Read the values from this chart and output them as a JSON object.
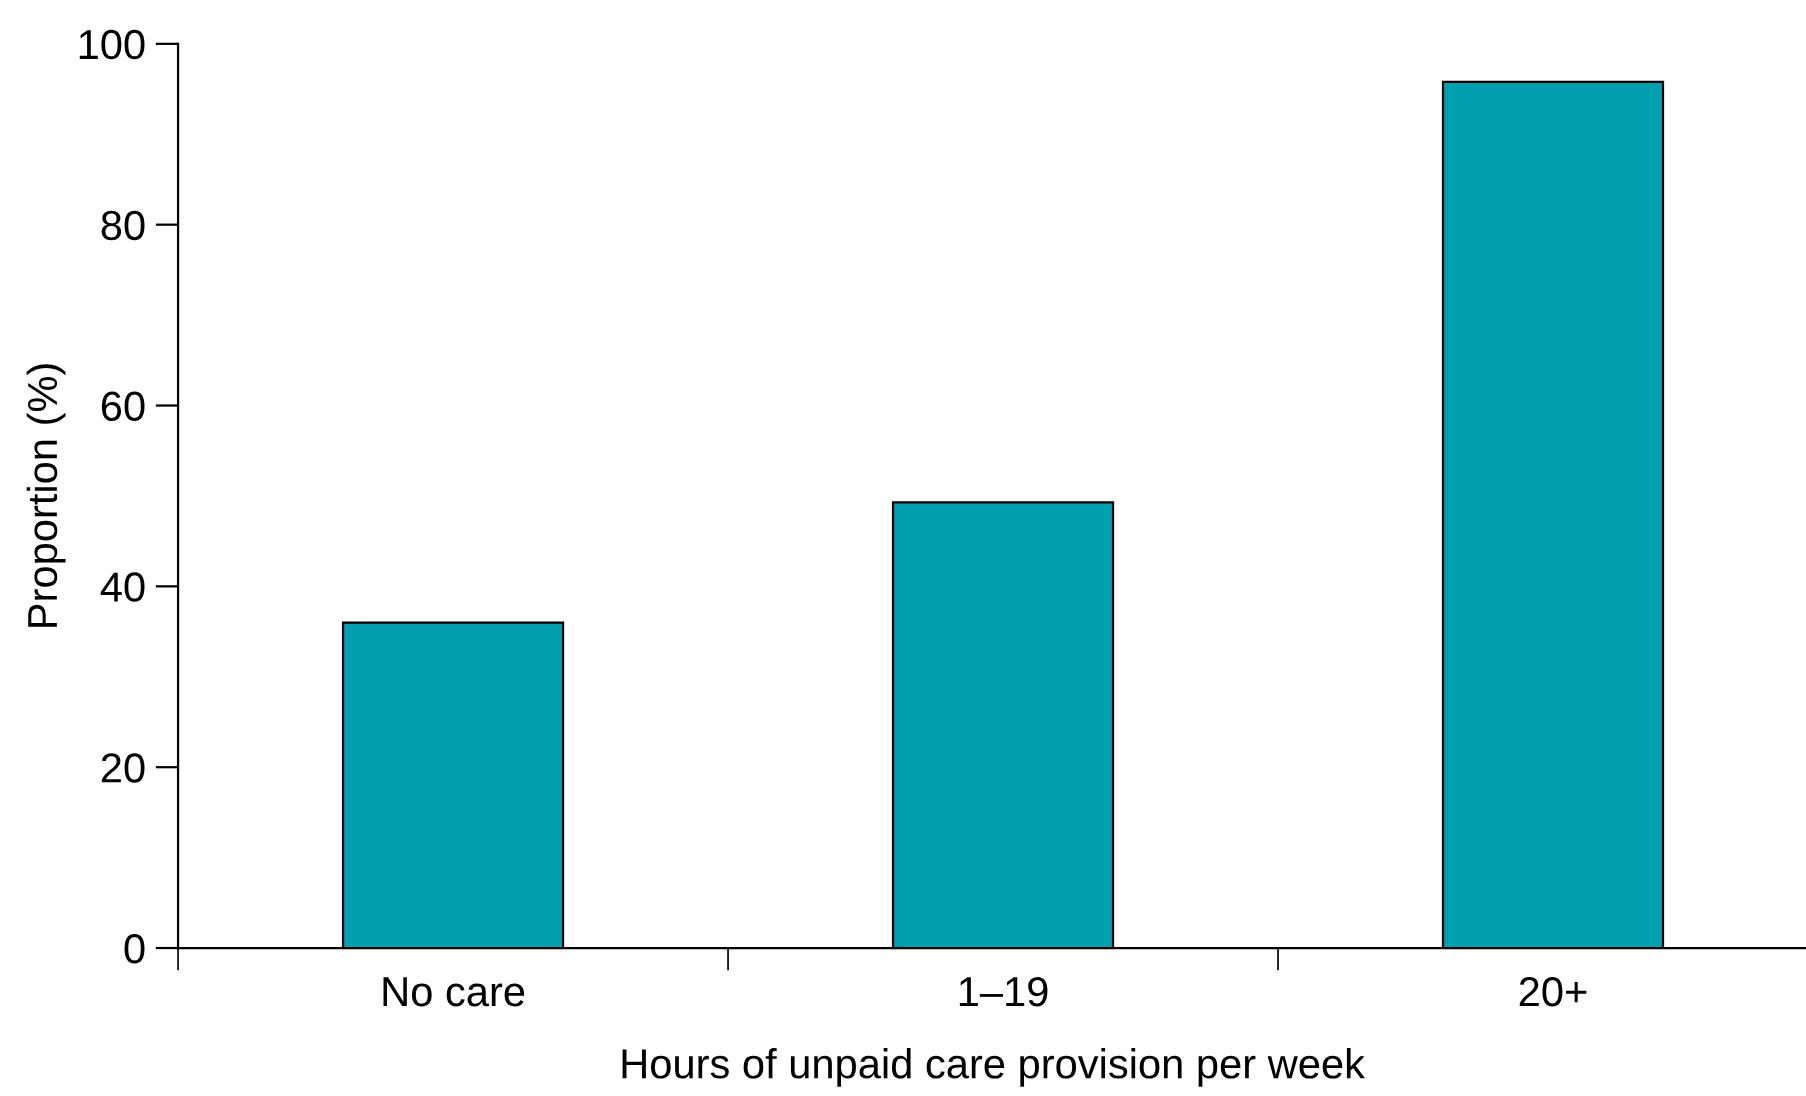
{
  "chart_data": {
    "type": "bar",
    "xlabel": "Hours of unpaid care provision per week",
    "ylabel": "Proportion (%)",
    "categories": [
      "No care",
      "1–19",
      "20+"
    ],
    "values": [
      36,
      49.3,
      95.8
    ],
    "color": "#00a0b0",
    "ylim": [
      0,
      100
    ],
    "yticks": [
      0,
      20,
      40,
      60,
      80,
      100
    ],
    "grid": false
  }
}
